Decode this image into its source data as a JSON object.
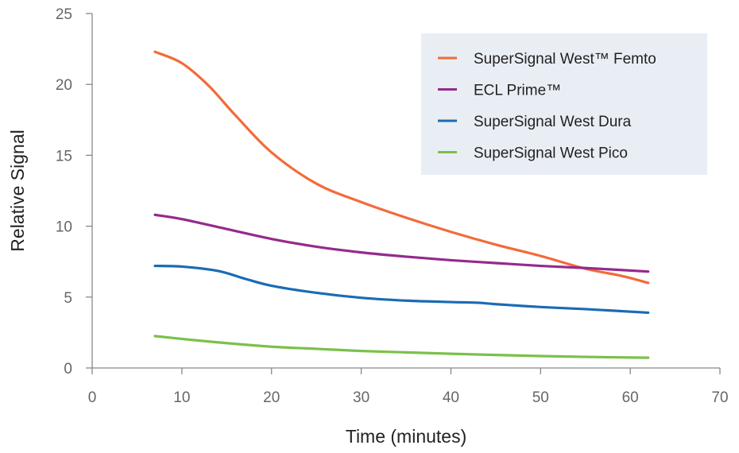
{
  "chart_data": {
    "type": "line",
    "xlabel": "Time (minutes)",
    "ylabel": "Relative Signal",
    "xlim": [
      0,
      70
    ],
    "ylim": [
      0,
      25
    ],
    "xticks": [
      0,
      10,
      20,
      30,
      40,
      50,
      60,
      70
    ],
    "yticks": [
      0,
      5,
      10,
      15,
      20,
      25
    ],
    "grid": false,
    "legend_position": "top-right",
    "legend_background": "#e9eef5",
    "series": [
      {
        "name": "SuperSignal West™ Femto",
        "color": "#f26b3a",
        "x": [
          7,
          10,
          13,
          16,
          20,
          25,
          30,
          35,
          40,
          45,
          50,
          55,
          59,
          62
        ],
        "y": [
          22.3,
          21.5,
          19.9,
          17.8,
          15.2,
          13.0,
          11.7,
          10.6,
          9.6,
          8.7,
          7.9,
          7.0,
          6.5,
          6.0
        ]
      },
      {
        "name": "ECL Prime™",
        "color": "#952a8c",
        "x": [
          7,
          10,
          15,
          20,
          25,
          30,
          35,
          40,
          45,
          50,
          55,
          62
        ],
        "y": [
          10.8,
          10.5,
          9.8,
          9.1,
          8.55,
          8.15,
          7.85,
          7.6,
          7.4,
          7.2,
          7.05,
          6.8
        ]
      },
      {
        "name": "SuperSignal West Dura",
        "color": "#1a6bb5",
        "x": [
          7,
          10,
          14,
          17,
          20,
          25,
          30,
          35,
          40,
          43,
          45,
          50,
          55,
          62
        ],
        "y": [
          7.2,
          7.15,
          6.85,
          6.3,
          5.8,
          5.3,
          4.95,
          4.75,
          4.65,
          4.6,
          4.5,
          4.3,
          4.15,
          3.9
        ]
      },
      {
        "name": "SuperSignal West Pico",
        "color": "#7cc04b",
        "x": [
          7,
          10,
          15,
          20,
          25,
          30,
          35,
          40,
          45,
          50,
          55,
          62
        ],
        "y": [
          2.25,
          2.05,
          1.75,
          1.5,
          1.35,
          1.2,
          1.1,
          1.0,
          0.92,
          0.84,
          0.78,
          0.72
        ]
      }
    ]
  }
}
